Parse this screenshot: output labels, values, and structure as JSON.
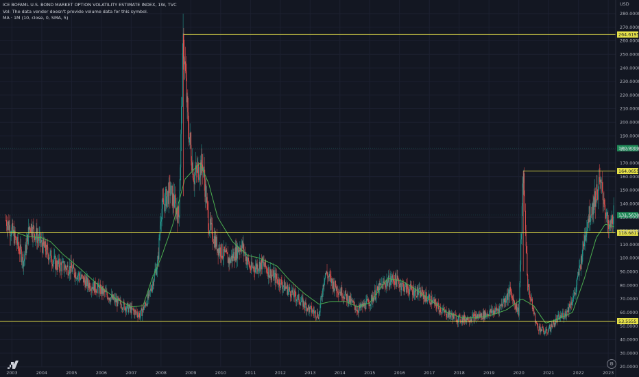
{
  "legend": {
    "title": "ICE BOFAML U.S. BOND MARKET OPTION VOLATILITY ESTIMATE INDEX, 1W, TVC",
    "vol_note": "Vol: The data vendor doesn't provide volume data for this symbol.",
    "ma_label": "MA · 1M (10, close, 0, SMA, 5)"
  },
  "currency": "USD",
  "icons": {
    "logo": "tradingview-logo-icon",
    "settings": "settings-icon"
  },
  "colors": {
    "background": "#131722",
    "up": "#26a69a",
    "down": "#ef5350",
    "ma": "#4caf50",
    "level": "#e8e34a",
    "price_tag": "#1f8a58"
  },
  "chart_data": {
    "type": "candlestick",
    "timeframe": "1W",
    "x_range": [
      2002.6,
      2023.25
    ],
    "y_range": [
      20,
      290
    ],
    "x_ticks": [
      "2003",
      "2004",
      "2005",
      "2006",
      "2007",
      "2008",
      "2009",
      "2010",
      "2011",
      "2012",
      "2013",
      "2014",
      "2015",
      "2016",
      "2017",
      "2018",
      "2019",
      "2020",
      "2021",
      "2022",
      "2023"
    ],
    "y_ticks": [
      "20.0000",
      "30.0000",
      "40.0000",
      "50.0000",
      "60.0000",
      "70.0000",
      "80.0000",
      "90.0000",
      "100.0000",
      "110.0000",
      "120.0000",
      "130.0000",
      "140.0000",
      "150.0000",
      "160.0000",
      "170.0000",
      "180.0000",
      "190.0000",
      "200.0000",
      "210.0000",
      "220.0000",
      "230.0000",
      "240.0000",
      "250.0000",
      "260.0000",
      "270.0000",
      "280.0000"
    ],
    "price_key_points": [
      [
        2002.8,
        128
      ],
      [
        2003.0,
        120
      ],
      [
        2003.4,
        98
      ],
      [
        2003.6,
        125
      ],
      [
        2004.0,
        110
      ],
      [
        2004.5,
        95
      ],
      [
        2005.0,
        92
      ],
      [
        2005.5,
        82
      ],
      [
        2006.0,
        76
      ],
      [
        2006.5,
        68
      ],
      [
        2007.0,
        62
      ],
      [
        2007.3,
        58
      ],
      [
        2007.6,
        72
      ],
      [
        2007.9,
        98
      ],
      [
        2008.0,
        135
      ],
      [
        2008.3,
        150
      ],
      [
        2008.6,
        130
      ],
      [
        2008.75,
        262
      ],
      [
        2008.9,
        200
      ],
      [
        2009.1,
        160
      ],
      [
        2009.4,
        170
      ],
      [
        2009.6,
        125
      ],
      [
        2009.9,
        108
      ],
      [
        2010.3,
        98
      ],
      [
        2010.7,
        110
      ],
      [
        2011.0,
        92
      ],
      [
        2011.4,
        96
      ],
      [
        2011.7,
        88
      ],
      [
        2012.0,
        82
      ],
      [
        2012.5,
        72
      ],
      [
        2013.0,
        62
      ],
      [
        2013.3,
        58
      ],
      [
        2013.5,
        90
      ],
      [
        2013.8,
        80
      ],
      [
        2014.2,
        72
      ],
      [
        2014.6,
        62
      ],
      [
        2015.0,
        68
      ],
      [
        2015.4,
        80
      ],
      [
        2015.8,
        85
      ],
      [
        2016.2,
        78
      ],
      [
        2016.6,
        75
      ],
      [
        2017.0,
        70
      ],
      [
        2017.5,
        60
      ],
      [
        2018.0,
        55
      ],
      [
        2018.4,
        56
      ],
      [
        2018.8,
        58
      ],
      [
        2019.3,
        62
      ],
      [
        2019.7,
        75
      ],
      [
        2020.0,
        60
      ],
      [
        2020.15,
        164
      ],
      [
        2020.3,
        80
      ],
      [
        2020.6,
        50
      ],
      [
        2020.9,
        45
      ],
      [
        2021.3,
        55
      ],
      [
        2021.6,
        60
      ],
      [
        2021.9,
        75
      ],
      [
        2022.1,
        100
      ],
      [
        2022.3,
        128
      ],
      [
        2022.5,
        140
      ],
      [
        2022.7,
        155
      ],
      [
        2022.85,
        145
      ],
      [
        2023.0,
        120
      ],
      [
        2023.1,
        125
      ],
      [
        2023.2,
        135
      ]
    ],
    "ma_key_points": [
      [
        2003.0,
        120
      ],
      [
        2003.5,
        116
      ],
      [
        2004.0,
        115
      ],
      [
        2004.3,
        112
      ],
      [
        2004.7,
        103
      ],
      [
        2005.3,
        92
      ],
      [
        2005.9,
        80
      ],
      [
        2006.5,
        70
      ],
      [
        2007.0,
        64
      ],
      [
        2007.4,
        65
      ],
      [
        2007.7,
        85
      ],
      [
        2008.0,
        100
      ],
      [
        2008.4,
        125
      ],
      [
        2008.8,
        158
      ],
      [
        2009.3,
        170
      ],
      [
        2009.6,
        155
      ],
      [
        2009.9,
        130
      ],
      [
        2010.4,
        112
      ],
      [
        2010.9,
        102
      ],
      [
        2011.3,
        100
      ],
      [
        2011.9,
        94
      ],
      [
        2012.3,
        84
      ],
      [
        2012.8,
        74
      ],
      [
        2013.3,
        66
      ],
      [
        2013.7,
        68
      ],
      [
        2014.2,
        68
      ],
      [
        2014.6,
        64
      ],
      [
        2015.0,
        67
      ],
      [
        2015.6,
        85
      ],
      [
        2016.1,
        83
      ],
      [
        2016.6,
        76
      ],
      [
        2017.1,
        68
      ],
      [
        2017.6,
        60
      ],
      [
        2018.1,
        56
      ],
      [
        2018.6,
        56
      ],
      [
        2019.1,
        58
      ],
      [
        2019.6,
        62
      ],
      [
        2020.1,
        70
      ],
      [
        2020.5,
        65
      ],
      [
        2020.9,
        52
      ],
      [
        2021.3,
        55
      ],
      [
        2021.8,
        60
      ],
      [
        2022.2,
        85
      ],
      [
        2022.6,
        115
      ],
      [
        2022.9,
        125
      ],
      [
        2023.2,
        123
      ]
    ],
    "horizontal_levels": [
      {
        "value": 264.6195,
        "label": "264.6195",
        "x_start": 2008.75
      },
      {
        "value": 164.0655,
        "label": "164.0655",
        "x_start": 2020.15
      },
      {
        "value": 118.6817,
        "label": "118.6817",
        "x_start": 2002.6
      },
      {
        "value": 53.5555,
        "label": "53.5555",
        "x_start": 2002.6
      }
    ],
    "price_tags": [
      {
        "value": 180.9,
        "label": "180.9000"
      },
      {
        "value": 131.6,
        "label": "131.5630"
      }
    ]
  }
}
